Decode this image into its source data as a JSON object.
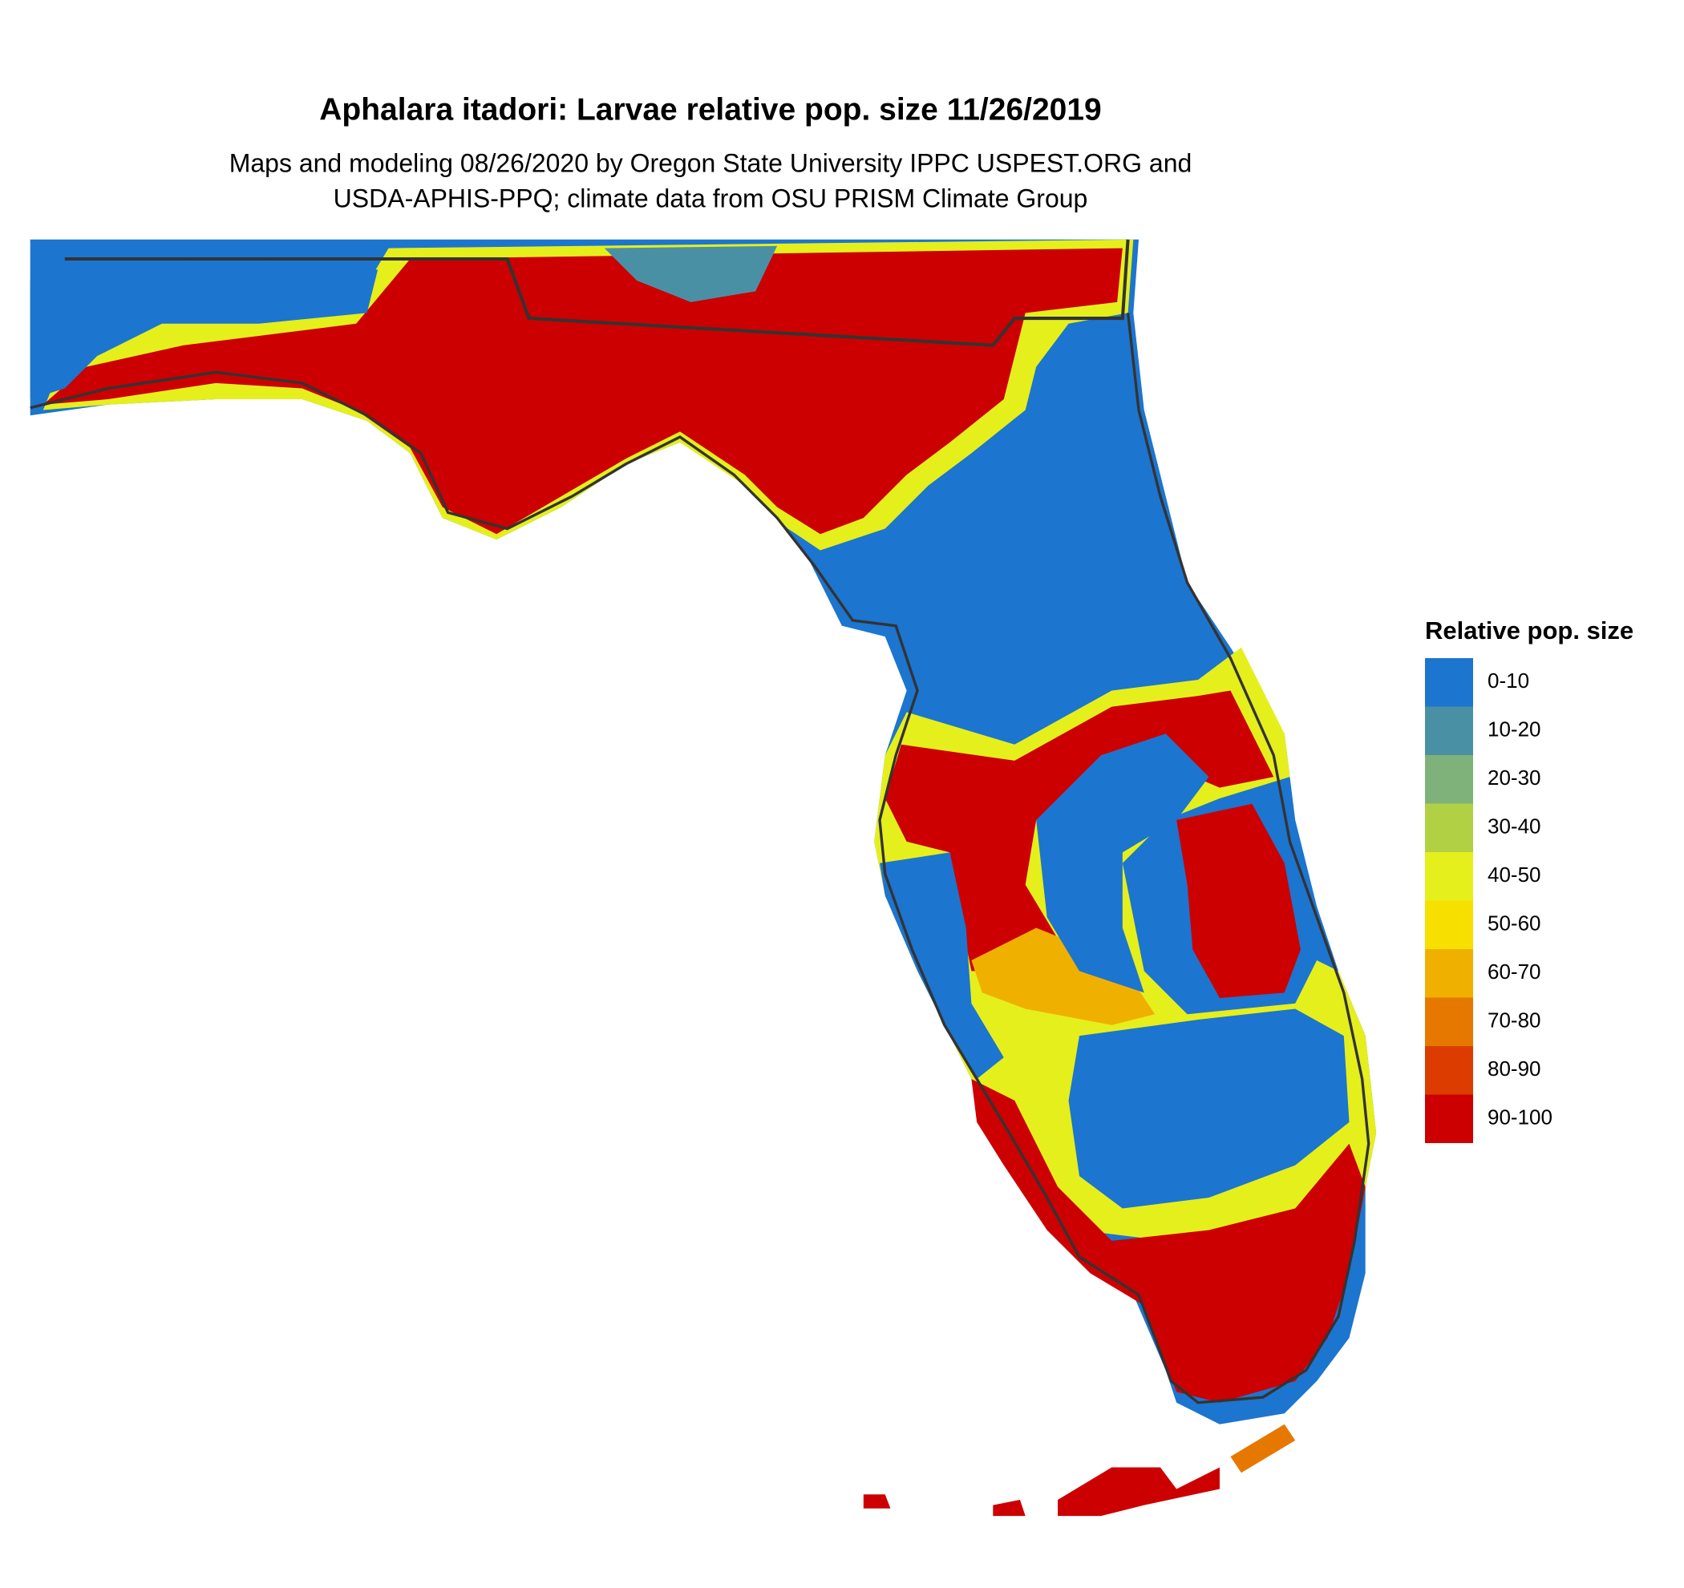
{
  "title": "Aphalara itadori: Larvae relative pop. size 11/26/2019",
  "subtitle": [
    "Maps and modeling 08/26/2020 by Oregon State University IPPC USPEST.ORG and",
    "USDA-APHIS-PPQ; climate data from OSU PRISM Climate Group"
  ],
  "legend": {
    "title": "Relative pop. size",
    "items": [
      {
        "label": "0-10",
        "color": "#1c75cf"
      },
      {
        "label": "10-20",
        "color": "#4a90a4"
      },
      {
        "label": "20-30",
        "color": "#7fb27a"
      },
      {
        "label": "30-40",
        "color": "#b2d043"
      },
      {
        "label": "40-50",
        "color": "#e5ef1c"
      },
      {
        "label": "50-60",
        "color": "#f7e000"
      },
      {
        "label": "60-70",
        "color": "#f0b000"
      },
      {
        "label": "70-80",
        "color": "#e67800"
      },
      {
        "label": "80-90",
        "color": "#dc3c00"
      },
      {
        "label": "90-100",
        "color": "#cc0000"
      }
    ]
  }
}
